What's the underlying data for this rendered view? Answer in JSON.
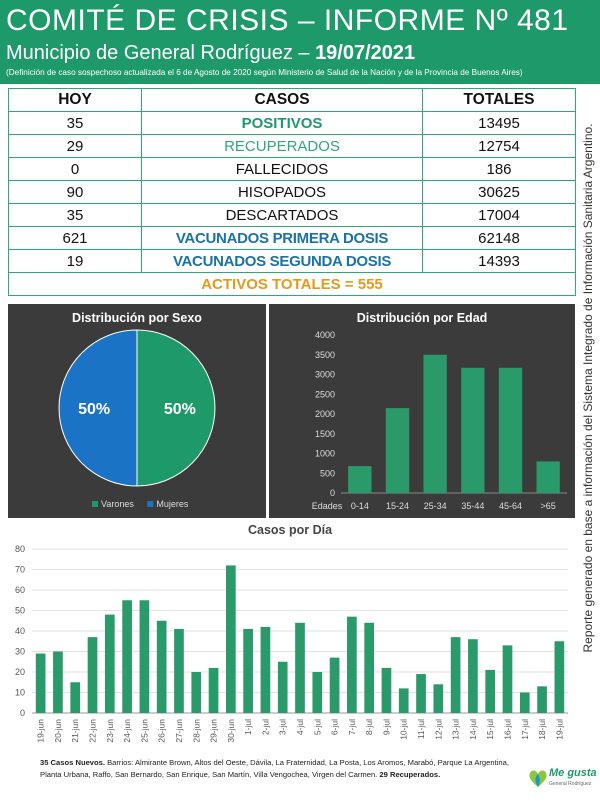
{
  "header": {
    "title": "COMITÉ DE CRISIS – INFORME Nº 481",
    "subtitle_prefix": "Municipio de General Rodríguez – ",
    "date": "19/07/2021",
    "note": "(Definición de caso sospechoso actualizada el 6 de Agosto de 2020 según Ministerio de Salud de la Nación y de la Provincia de Buenos Aires)"
  },
  "table": {
    "headers": [
      "HOY",
      "CASOS",
      "TOTALES"
    ],
    "rows": [
      {
        "hoy": "35",
        "casos": "POSITIVOS",
        "totales": "13495"
      },
      {
        "hoy": "29",
        "casos": "RECUPERADOS",
        "totales": "12754"
      },
      {
        "hoy": "0",
        "casos": "FALLECIDOS",
        "totales": "186"
      },
      {
        "hoy": "90",
        "casos": "HISOPADOS",
        "totales": "30625"
      },
      {
        "hoy": "35",
        "casos": "DESCARTADOS",
        "totales": "17004"
      },
      {
        "hoy": "621",
        "casos": "VACUNADOS PRIMERA DOSIS",
        "totales": "62148"
      },
      {
        "hoy": "19",
        "casos": "VACUNADOS SEGUNDA DOSIS",
        "totales": "14393"
      }
    ],
    "activos": "ACTIVOS TOTALES = 555"
  },
  "colors": {
    "green": "#1e9a6a",
    "blue": "#1a73a8",
    "orange": "#e69a1c",
    "panel_bg": "#3b3b3b",
    "bar": "#2a9a6a"
  },
  "chart_data": [
    {
      "type": "pie",
      "title": "Distribución por Sexo",
      "labels": [
        "Varones",
        "Mujeres"
      ],
      "values": [
        50,
        50
      ],
      "data_labels": [
        "50%",
        "50%"
      ],
      "legend_placement": "bottom"
    },
    {
      "type": "bar",
      "title": "Distribución por Edad",
      "xlabel": "Edades",
      "categories": [
        "0-14",
        "15-24",
        "25-34",
        "35-44",
        "45-64",
        ">65"
      ],
      "values": [
        680,
        2150,
        3500,
        3170,
        3170,
        800
      ],
      "ylim": [
        0,
        4000
      ],
      "yticks": [
        0,
        500,
        1000,
        1500,
        2000,
        2500,
        3000,
        3500,
        4000
      ],
      "grid": false
    },
    {
      "type": "bar",
      "title": "Casos por Día",
      "categories": [
        "19-jun",
        "20-jun",
        "21-jun",
        "22-jun",
        "23-jun",
        "24-jun",
        "25-jun",
        "26-jun",
        "27-jun",
        "28-jun",
        "29-jun",
        "30-jun",
        "1-jul",
        "2-jul",
        "3-jul",
        "4-jul",
        "5-jul",
        "6-jul",
        "7-jul",
        "8-jul",
        "9-jul",
        "10-jul",
        "11-jul",
        "12-jul",
        "13-jul",
        "14-jul",
        "15-jul",
        "16-jul",
        "17-jul",
        "18-jul",
        "19-jul"
      ],
      "values": [
        29,
        30,
        15,
        37,
        48,
        55,
        55,
        45,
        41,
        20,
        22,
        72,
        41,
        42,
        25,
        44,
        20,
        27,
        47,
        44,
        22,
        12,
        19,
        14,
        37,
        36,
        21,
        33,
        10,
        13,
        35
      ],
      "ylim": [
        0,
        80
      ],
      "yticks": [
        0,
        10,
        20,
        30,
        40,
        50,
        60,
        70,
        80
      ],
      "grid": true
    }
  ],
  "side_text": "Reporte generado en base a información del Sistema Integrado de Información Sanitaria Argentino.",
  "footer": {
    "new_cases": "35 Casos Nuevos.",
    "barrios": " Barrios: Almirante Brown, Altos del Oeste, Dávila, La Fraternidad, La Posta, Los Aromos, Marabó, Parque La Argentina, Planta Urbana, Raffo, San Bernardo, San Enrique, San Martín, Villa Vengochea, Virgen del Carmen. ",
    "recuperados": "29 Recuperados."
  },
  "logo": {
    "text": "Me gusta",
    "sub": "General Rodríguez"
  }
}
